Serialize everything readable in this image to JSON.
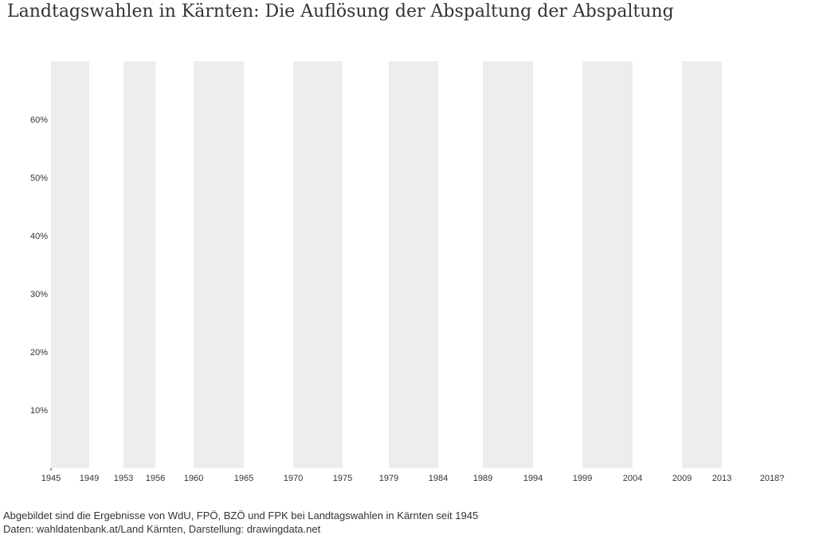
{
  "chart_data": {
    "type": "bar",
    "title": "Landtagswahlen in Kärnten: Die Auflösung der Abspaltung der Abspaltung",
    "xlabel": "",
    "ylabel": "",
    "x_ticks": [
      "1945",
      "1949",
      "1953",
      "1956",
      "1960",
      "1965",
      "1970",
      "1975",
      "1979",
      "1984",
      "1989",
      "1994",
      "1999",
      "2004",
      "2009",
      "2013",
      "2018?"
    ],
    "y_ticks": [
      10,
      20,
      30,
      40,
      50,
      60
    ],
    "y_tick_labels": [
      "10%",
      "20%",
      "30%",
      "40%",
      "50%",
      "60%"
    ],
    "ylim": [
      0,
      70
    ],
    "legislative_periods": [
      [
        "1945",
        "1949"
      ],
      [
        "1953",
        "1956"
      ],
      [
        "1960",
        "1965"
      ],
      [
        "1970",
        "1975"
      ],
      [
        "1979",
        "1984"
      ],
      [
        "1989",
        "1994"
      ],
      [
        "1999",
        "2004"
      ],
      [
        "2009",
        "2013"
      ]
    ],
    "series": [],
    "band_color": "#ededed",
    "grid": false
  },
  "footer": {
    "description": "Abgebildet sind die Ergebnisse von WdU, FPÖ, BZÖ und FPK bei Landtagswahlen in Kärnten seit 1945",
    "source": "Daten: wahldatenbank.at/Land Kärnten, Darstellung: drawingdata.net"
  }
}
